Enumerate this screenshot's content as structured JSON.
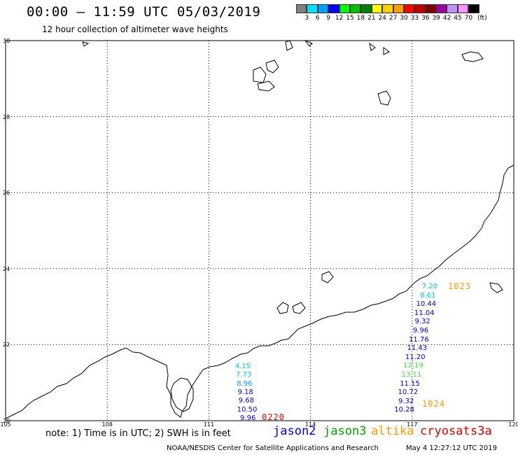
{
  "title": "00:00 – 11:59 UTC 05/03/2019",
  "subtitle": "12 hour collection of altimeter wave heights",
  "legend": {
    "colors": [
      "#808080",
      "#00e0ff",
      "#00a0ff",
      "#0000ff",
      "#00ff00",
      "#00c000",
      "#008000",
      "#ffff00",
      "#ffd000",
      "#ffa000",
      "#ff0000",
      "#c00000",
      "#800000",
      "#a000a0",
      "#c090ff",
      "#ff90ff",
      "#000000"
    ],
    "labels": [
      "3",
      "6",
      "9",
      "12",
      "15",
      "18",
      "21",
      "24",
      "27",
      "30",
      "33",
      "36",
      "39",
      "42",
      "45",
      "70",
      "(ft)"
    ]
  },
  "axes": {
    "lat_labels": [
      "30",
      "28",
      "26",
      "24",
      "22",
      "20"
    ],
    "lon_labels": [
      "105",
      "108",
      "111",
      "114",
      "117",
      "120"
    ]
  },
  "tracks": [
    {
      "satellite": "jason2",
      "time": "0220",
      "time_color": "#e00000",
      "points": [
        {
          "v": "4.15",
          "c": "#00c0e0"
        },
        {
          "v": "7.73",
          "c": "#00c0e0"
        },
        {
          "v": "8.96",
          "c": "#00a0ff"
        },
        {
          "v": "9.18",
          "c": "#0000cc"
        },
        {
          "v": "9.68",
          "c": "#0000cc"
        },
        {
          "v": "10.50",
          "c": "#0000cc"
        },
        {
          "v": "9.96",
          "c": "#0000cc"
        }
      ]
    },
    {
      "satellite": "altika",
      "time_top": "1023",
      "time_bottom": "1024",
      "time_color": "#ff9900",
      "points": [
        {
          "v": "7.20",
          "c": "#00c0e0"
        },
        {
          "v": "8.61",
          "c": "#00c0e0"
        },
        {
          "v": "10.44",
          "c": "#0000cc"
        },
        {
          "v": "11.04",
          "c": "#0000cc"
        },
        {
          "v": "9.32",
          "c": "#0000cc"
        },
        {
          "v": "9.96",
          "c": "#0000cc"
        },
        {
          "v": "11.76",
          "c": "#0000cc"
        },
        {
          "v": "11.43",
          "c": "#0000cc"
        },
        {
          "v": "11.20",
          "c": "#0000cc"
        },
        {
          "v": "12.19",
          "c": "#40e040"
        },
        {
          "v": "13.11",
          "c": "#40e040"
        },
        {
          "v": "11.15",
          "c": "#0000cc"
        },
        {
          "v": "10.72",
          "c": "#0000cc"
        },
        {
          "v": "9.32",
          "c": "#0000cc"
        },
        {
          "v": "10.28",
          "c": "#0000cc"
        }
      ]
    }
  ],
  "note": "note: 1) Time is in UTC; 2) SWH is in feet",
  "satellites": [
    {
      "name": "jason2",
      "color": "#0000e0"
    },
    {
      "name": "jason3",
      "color": "#00a000"
    },
    {
      "name": "altika",
      "color": "#ff9900"
    },
    {
      "name": "cryosat",
      "color": "#e00000"
    },
    {
      "name": "s3a",
      "color": "#c00000"
    }
  ],
  "credit": "NOAA/NESDIS Center for Satellite Applications and Research",
  "generated": "May  4 12:27:12 UTC 2019"
}
